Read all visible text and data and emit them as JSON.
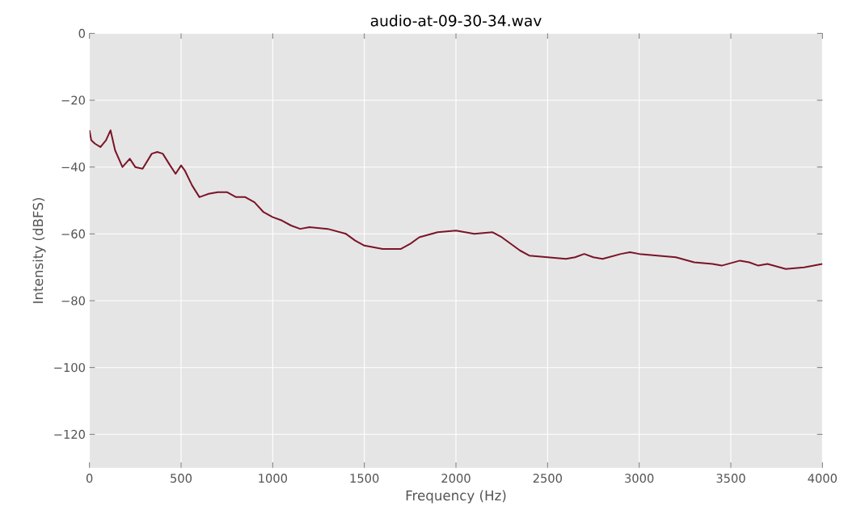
{
  "chart_data": {
    "type": "line",
    "title": "audio-at-09-30-34.wav",
    "xlabel": "Frequency (Hz)",
    "ylabel": "Intensity (dBFS)",
    "x": [
      0,
      10,
      30,
      60,
      90,
      115,
      140,
      180,
      220,
      250,
      290,
      340,
      370,
      400,
      440,
      470,
      500,
      520,
      560,
      600,
      650,
      700,
      750,
      800,
      850,
      900,
      950,
      1000,
      1050,
      1100,
      1150,
      1200,
      1300,
      1400,
      1450,
      1500,
      1600,
      1700,
      1750,
      1800,
      1900,
      2000,
      2100,
      2200,
      2250,
      2300,
      2350,
      2400,
      2500,
      2600,
      2650,
      2700,
      2750,
      2800,
      2900,
      2950,
      3000,
      3100,
      3200,
      3300,
      3400,
      3450,
      3550,
      3600,
      3650,
      3700,
      3800,
      3900,
      4000
    ],
    "series": [
      {
        "color": "#7a1428",
        "values": [
          -29,
          -32,
          -33,
          -34,
          -32,
          -29,
          -35,
          -40,
          -37.5,
          -40,
          -40.5,
          -36,
          -35.5,
          -36,
          -39.5,
          -42,
          -39.5,
          -41,
          -45.5,
          -49,
          -48,
          -47.5,
          -47.5,
          -49,
          -49,
          -50.5,
          -53.5,
          -55,
          -56,
          -57.5,
          -58.5,
          -58,
          -58.5,
          -60,
          -62,
          -63.5,
          -64.5,
          -64.5,
          -63,
          -61,
          -59.5,
          -59,
          -60,
          -59.5,
          -61,
          -63,
          -65,
          -66.5,
          -67,
          -67.5,
          -67,
          -66,
          -67,
          -67.5,
          -66,
          -65.5,
          -66,
          -66.5,
          -67,
          -68.5,
          -69,
          -69.5,
          -68,
          -68.5,
          -69.5,
          -69,
          -70.5,
          -70,
          -69
        ]
      }
    ],
    "xlim": [
      0,
      4000
    ],
    "ylim": [
      -130,
      0
    ],
    "xticks": [
      0,
      500,
      1000,
      1500,
      2000,
      2500,
      3000,
      3500,
      4000
    ],
    "yticks": [
      {
        "value": -120,
        "label": "−120"
      },
      {
        "value": -100,
        "label": "−100"
      },
      {
        "value": -80,
        "label": "−80"
      },
      {
        "value": -60,
        "label": "−60"
      },
      {
        "value": -40,
        "label": "−40"
      },
      {
        "value": -20,
        "label": "−20"
      },
      0
    ],
    "grid": true,
    "legend": false,
    "marker": "none",
    "line_style": "solid"
  }
}
